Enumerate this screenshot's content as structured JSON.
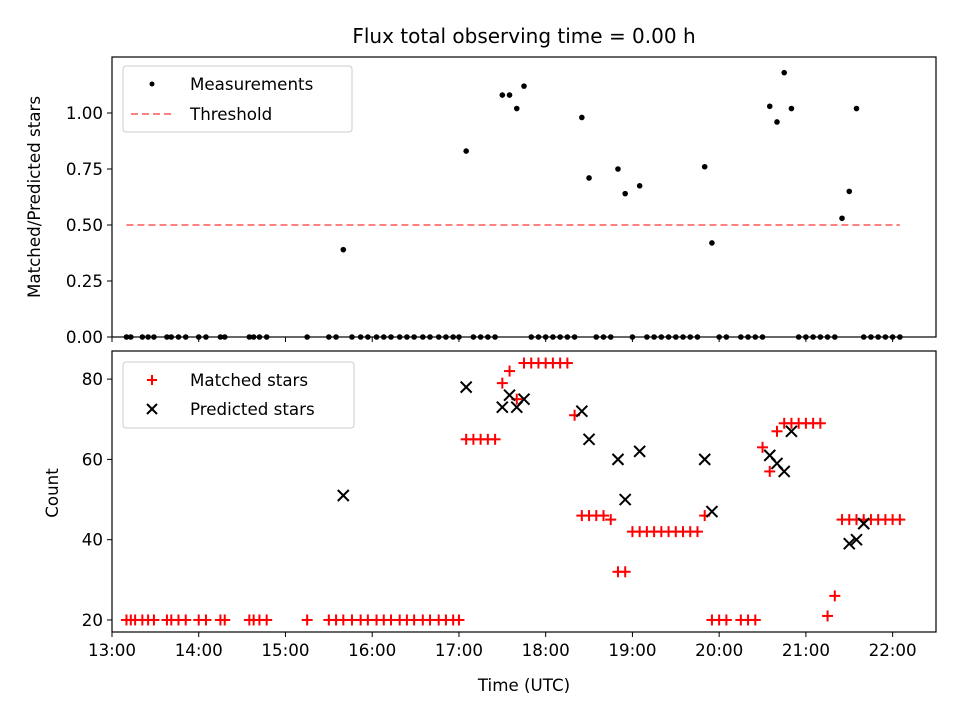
{
  "chart_data": [
    {
      "type": "scatter",
      "title": "Flux total observing time = 0.00 h",
      "xlabel": "",
      "ylabel": "Matched/Predicted stars",
      "xlim": [
        "13:00",
        "22:30"
      ],
      "ylim": [
        0,
        1.25
      ],
      "yticks": [
        "0.00",
        "0.25",
        "0.50",
        "0.75",
        "1.00"
      ],
      "legend_position": "top-left",
      "grid": false,
      "threshold": {
        "name": "Threshold",
        "value": 0.5,
        "x_start": "13:10",
        "x_end": "22:05",
        "color": "#ff8080",
        "style": "dashed"
      },
      "series": [
        {
          "name": "Measurements",
          "marker": "dot",
          "color": "#000000",
          "x": [
            "13:10",
            "13:13",
            "13:21",
            "13:25",
            "13:29",
            "13:38",
            "13:41",
            "13:46",
            "13:51",
            "14:00",
            "14:05",
            "14:15",
            "14:18",
            "14:35",
            "14:38",
            "14:42",
            "14:47",
            "15:15",
            "15:30",
            "15:35",
            "15:40",
            "15:46",
            "15:52",
            "15:57",
            "16:03",
            "16:08",
            "16:13",
            "16:19",
            "16:24",
            "16:29",
            "16:35",
            "16:40",
            "16:46",
            "16:51",
            "16:56",
            "17:00",
            "17:05",
            "17:10",
            "17:15",
            "17:20",
            "17:25",
            "17:30",
            "17:35",
            "17:40",
            "17:45",
            "17:50",
            "17:55",
            "18:00",
            "18:05",
            "18:10",
            "18:15",
            "18:20",
            "18:25",
            "18:30",
            "18:35",
            "18:40",
            "18:45",
            "18:50",
            "18:55",
            "19:00",
            "19:05",
            "19:10",
            "19:15",
            "19:20",
            "19:25",
            "19:30",
            "19:35",
            "19:40",
            "19:45",
            "19:50",
            "19:55",
            "20:00",
            "20:05",
            "20:15",
            "20:20",
            "20:25",
            "20:30",
            "20:35",
            "20:40",
            "20:45",
            "20:50",
            "20:55",
            "21:00",
            "21:05",
            "21:10",
            "21:15",
            "21:20",
            "21:25",
            "21:30",
            "21:35",
            "21:40",
            "21:45",
            "21:50",
            "21:55",
            "22:00",
            "22:05"
          ],
          "y": [
            0.0,
            0.0,
            0.0,
            0.0,
            0.0,
            0.0,
            0.0,
            0.0,
            0.0,
            0.0,
            0.0,
            0.0,
            0.0,
            0.0,
            0.0,
            0.0,
            0.0,
            0.0,
            0.0,
            0.0,
            0.39,
            0.0,
            0.0,
            0.0,
            0.0,
            0.0,
            0.0,
            0.0,
            0.0,
            0.0,
            0.0,
            0.0,
            0.0,
            0.0,
            0.0,
            0.0,
            0.83,
            0.0,
            0.0,
            0.0,
            0.0,
            1.08,
            1.08,
            1.02,
            1.12,
            0.0,
            0.0,
            0.0,
            0.0,
            0.0,
            0.0,
            0.0,
            0.98,
            0.71,
            0.0,
            0.0,
            0.0,
            0.75,
            0.64,
            0.0,
            0.675,
            0.0,
            0.0,
            0.0,
            0.0,
            0.0,
            0.0,
            0.0,
            0.0,
            0.76,
            0.42,
            0.0,
            0.0,
            0.0,
            0.0,
            0.0,
            0.0,
            1.03,
            0.96,
            1.18,
            1.02,
            0.0,
            0.0,
            0.0,
            0.0,
            0.0,
            0.0,
            0.53,
            0.65,
            1.02,
            0.0,
            0.0,
            0.0,
            0.0,
            0.0,
            0.0
          ]
        }
      ]
    },
    {
      "type": "scatter",
      "title": "",
      "xlabel": "Time (UTC)",
      "ylabel": "Count",
      "xlim": [
        "13:00",
        "22:30"
      ],
      "ylim": [
        17,
        87
      ],
      "yticks": [
        "20",
        "40",
        "60",
        "80"
      ],
      "xticks": [
        "13:00",
        "14:00",
        "15:00",
        "16:00",
        "17:00",
        "18:00",
        "19:00",
        "20:00",
        "21:00",
        "22:00"
      ],
      "legend_position": "top-left",
      "grid": false,
      "series": [
        {
          "name": "Matched stars",
          "marker": "plus",
          "color": "#ff0000",
          "x": [
            "13:10",
            "13:13",
            "13:16",
            "13:21",
            "13:25",
            "13:29",
            "13:38",
            "13:41",
            "13:46",
            "13:51",
            "14:00",
            "14:05",
            "14:15",
            "14:18",
            "14:35",
            "14:38",
            "14:42",
            "14:47",
            "15:15",
            "15:30",
            "15:35",
            "15:40",
            "15:46",
            "15:52",
            "15:57",
            "16:03",
            "16:08",
            "16:13",
            "16:19",
            "16:24",
            "16:29",
            "16:35",
            "16:40",
            "16:46",
            "16:51",
            "16:56",
            "17:00",
            "17:05",
            "17:10",
            "17:15",
            "17:20",
            "17:25",
            "17:30",
            "17:35",
            "17:40",
            "17:45",
            "17:50",
            "17:55",
            "18:00",
            "18:05",
            "18:10",
            "18:15",
            "18:20",
            "18:25",
            "18:30",
            "18:35",
            "18:40",
            "18:45",
            "18:50",
            "18:55",
            "19:00",
            "19:05",
            "19:10",
            "19:15",
            "19:20",
            "19:25",
            "19:30",
            "19:35",
            "19:40",
            "19:45",
            "19:50",
            "19:55",
            "20:00",
            "20:05",
            "20:15",
            "20:20",
            "20:25",
            "20:30",
            "20:35",
            "20:40",
            "20:45",
            "20:50",
            "20:55",
            "21:00",
            "21:05",
            "21:10",
            "21:15",
            "21:20",
            "21:25",
            "21:30",
            "21:35",
            "21:40",
            "21:45",
            "21:50",
            "21:55",
            "22:00",
            "22:05"
          ],
          "y": [
            20,
            20,
            20,
            20,
            20,
            20,
            20,
            20,
            20,
            20,
            20,
            20,
            20,
            20,
            20,
            20,
            20,
            20,
            20,
            20,
            20,
            20,
            20,
            20,
            20,
            20,
            20,
            20,
            20,
            20,
            20,
            20,
            20,
            20,
            20,
            20,
            20,
            65,
            65,
            65,
            65,
            65,
            79,
            82,
            75,
            84,
            84,
            84,
            84,
            84,
            84,
            84,
            71,
            46,
            46,
            46,
            46,
            45,
            32,
            32,
            42,
            42,
            42,
            42,
            42,
            42,
            42,
            42,
            42,
            42,
            46,
            20,
            20,
            20,
            20,
            20,
            20,
            63,
            57,
            67,
            69,
            69,
            69,
            69,
            69,
            69,
            21,
            26,
            45,
            45,
            45,
            45,
            45,
            45,
            45,
            45,
            45
          ]
        },
        {
          "name": "Predicted stars",
          "marker": "x",
          "color": "#000000",
          "x": [
            "15:40",
            "17:05",
            "17:30",
            "17:35",
            "17:40",
            "17:45",
            "18:25",
            "18:30",
            "18:50",
            "18:55",
            "19:05",
            "19:50",
            "19:55",
            "20:35",
            "20:40",
            "20:45",
            "20:50",
            "21:30",
            "21:35",
            "21:40"
          ],
          "y": [
            51,
            78,
            73,
            76,
            73,
            75,
            72,
            65,
            60,
            50,
            62,
            60,
            47,
            61,
            59,
            57,
            67,
            39,
            40,
            44
          ]
        }
      ]
    }
  ]
}
